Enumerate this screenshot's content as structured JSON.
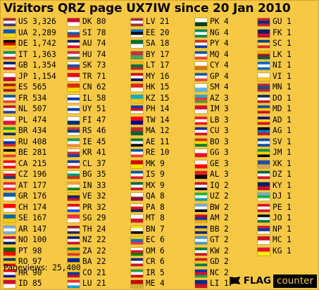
{
  "title": "Vizitors QRZ page UX7IW since 20 Jan 2010",
  "pageviews_label": "Pageviews:",
  "pageviews_value": "25,400",
  "brand": {
    "flag": "FLAG",
    "counter": "counter",
    "icon": "flag-counter-logo-icon"
  },
  "columns": [
    [
      {
        "code": "US",
        "count": "3,326",
        "colors": [
          "#b22234",
          "#ffffff",
          "#3c3b6e"
        ]
      },
      {
        "code": "UA",
        "count": "2,289",
        "colors": [
          "#0057b7",
          "#ffd700"
        ]
      },
      {
        "code": "DE",
        "count": "1,742",
        "colors": [
          "#000000",
          "#dd0000",
          "#ffce00"
        ]
      },
      {
        "code": "IT",
        "count": "1,363",
        "colors": [
          "#009246",
          "#ffffff",
          "#ce2b37"
        ]
      },
      {
        "code": "GB",
        "count": "1,354",
        "colors": [
          "#012169",
          "#ffffff",
          "#c8102e"
        ]
      },
      {
        "code": "JP",
        "count": "1,154",
        "colors": [
          "#ffffff",
          "#bc002d"
        ]
      },
      {
        "code": "ES",
        "count": "565",
        "colors": [
          "#aa151b",
          "#f1bf00",
          "#aa151b"
        ]
      },
      {
        "code": "FR",
        "count": "534",
        "colors": [
          "#0055a4",
          "#ffffff",
          "#ef4135"
        ]
      },
      {
        "code": "NL",
        "count": "507",
        "colors": [
          "#ae1c28",
          "#ffffff",
          "#21468b"
        ]
      },
      {
        "code": "PL",
        "count": "474",
        "colors": [
          "#ffffff",
          "#dc143c"
        ]
      },
      {
        "code": "BR",
        "count": "434",
        "colors": [
          "#009c3b",
          "#ffdf00",
          "#002776"
        ]
      },
      {
        "code": "RU",
        "count": "408",
        "colors": [
          "#ffffff",
          "#0039a6",
          "#d52b1e"
        ]
      },
      {
        "code": "BE",
        "count": "281",
        "colors": [
          "#000000",
          "#fdda24",
          "#ef3340"
        ]
      },
      {
        "code": "CA",
        "count": "215",
        "colors": [
          "#ff0000",
          "#ffffff",
          "#ff0000"
        ]
      },
      {
        "code": "CZ",
        "count": "196",
        "colors": [
          "#ffffff",
          "#d7141a",
          "#11457e"
        ]
      },
      {
        "code": "AT",
        "count": "177",
        "colors": [
          "#ed2939",
          "#ffffff",
          "#ed2939"
        ]
      },
      {
        "code": "GR",
        "count": "176",
        "colors": [
          "#0d5eaf",
          "#ffffff"
        ]
      },
      {
        "code": "CH",
        "count": "174",
        "colors": [
          "#ff0000",
          "#ffffff"
        ]
      },
      {
        "code": "SE",
        "count": "167",
        "colors": [
          "#006aa7",
          "#fecc00"
        ]
      },
      {
        "code": "AR",
        "count": "147",
        "colors": [
          "#74acdf",
          "#ffffff",
          "#74acdf"
        ]
      },
      {
        "code": "NO",
        "count": "100",
        "colors": [
          "#ba0c2f",
          "#ffffff",
          "#00205b"
        ]
      },
      {
        "code": "PT",
        "count": "98",
        "colors": [
          "#006600",
          "#ff0000"
        ]
      },
      {
        "code": "RO",
        "count": "97",
        "colors": [
          "#002b7f",
          "#fcd116",
          "#ce1126"
        ]
      },
      {
        "code": "HR",
        "count": "90",
        "colors": [
          "#ff0000",
          "#ffffff",
          "#171796"
        ]
      },
      {
        "code": "ID",
        "count": "85",
        "colors": [
          "#ce1126",
          "#ffffff"
        ]
      }
    ],
    [
      {
        "code": "DK",
        "count": "80",
        "colors": [
          "#c60c30",
          "#ffffff"
        ]
      },
      {
        "code": "SI",
        "count": "78",
        "colors": [
          "#ffffff",
          "#005da4",
          "#ed1c24"
        ]
      },
      {
        "code": "AU",
        "count": "74",
        "colors": [
          "#012169",
          "#ffffff",
          "#e4002b"
        ]
      },
      {
        "code": "HU",
        "count": "74",
        "colors": [
          "#ce2939",
          "#ffffff",
          "#477050"
        ]
      },
      {
        "code": "SK",
        "count": "73",
        "colors": [
          "#ffffff",
          "#0b4ea2",
          "#ee1c25"
        ]
      },
      {
        "code": "TR",
        "count": "71",
        "colors": [
          "#e30a17",
          "#ffffff"
        ]
      },
      {
        "code": "CN",
        "count": "62",
        "colors": [
          "#de2910",
          "#ffde00"
        ]
      },
      {
        "code": "IL",
        "count": "58",
        "colors": [
          "#ffffff",
          "#0038b8",
          "#ffffff"
        ]
      },
      {
        "code": "UY",
        "count": "51",
        "colors": [
          "#ffffff",
          "#0038a8",
          "#ffffff"
        ]
      },
      {
        "code": "FI",
        "count": "47",
        "colors": [
          "#ffffff",
          "#002f6c"
        ]
      },
      {
        "code": "RS",
        "count": "46",
        "colors": [
          "#c6363c",
          "#0c4076",
          "#ffffff"
        ]
      },
      {
        "code": "IE",
        "count": "45",
        "colors": [
          "#169b62",
          "#ffffff",
          "#ff883e"
        ]
      },
      {
        "code": "KR",
        "count": "41",
        "colors": [
          "#ffffff",
          "#cd2e3a",
          "#0047a0"
        ]
      },
      {
        "code": "CL",
        "count": "37",
        "colors": [
          "#0039a6",
          "#ffffff",
          "#d52b1e"
        ]
      },
      {
        "code": "BG",
        "count": "35",
        "colors": [
          "#ffffff",
          "#00966e",
          "#d62612"
        ]
      },
      {
        "code": "IN",
        "count": "33",
        "colors": [
          "#ff9933",
          "#ffffff",
          "#138808"
        ]
      },
      {
        "code": "VE",
        "count": "32",
        "colors": [
          "#ffcc00",
          "#00247d",
          "#cf142b"
        ]
      },
      {
        "code": "PR",
        "count": "32",
        "colors": [
          "#ed0000",
          "#ffffff",
          "#0050f0"
        ]
      },
      {
        "code": "SG",
        "count": "29",
        "colors": [
          "#ef3340",
          "#ffffff"
        ]
      },
      {
        "code": "TH",
        "count": "24",
        "colors": [
          "#a51931",
          "#f4f5f8",
          "#2d2a4a"
        ]
      },
      {
        "code": "NZ",
        "count": "22",
        "colors": [
          "#012169",
          "#ffffff",
          "#c8102e"
        ]
      },
      {
        "code": "ZA",
        "count": "22",
        "colors": [
          "#007a4d",
          "#ffb612",
          "#de3831"
        ]
      },
      {
        "code": "BA",
        "count": "22",
        "colors": [
          "#002395",
          "#fecb00"
        ]
      },
      {
        "code": "CO",
        "count": "21",
        "colors": [
          "#fcd116",
          "#003893",
          "#ce1126"
        ]
      },
      {
        "code": "LU",
        "count": "21",
        "colors": [
          "#ed2939",
          "#ffffff",
          "#00a1de"
        ]
      }
    ],
    [
      {
        "code": "LV",
        "count": "21",
        "colors": [
          "#9e3039",
          "#ffffff",
          "#9e3039"
        ]
      },
      {
        "code": "EE",
        "count": "20",
        "colors": [
          "#0072ce",
          "#000000",
          "#ffffff"
        ]
      },
      {
        "code": "SA",
        "count": "18",
        "colors": [
          "#006c35",
          "#ffffff"
        ]
      },
      {
        "code": "BY",
        "count": "17",
        "colors": [
          "#c8313e",
          "#4aa657"
        ]
      },
      {
        "code": "LT",
        "count": "17",
        "colors": [
          "#fdb913",
          "#006a44",
          "#c1272d"
        ]
      },
      {
        "code": "MY",
        "count": "16",
        "colors": [
          "#cc0001",
          "#ffffff",
          "#010066"
        ]
      },
      {
        "code": "HK",
        "count": "15",
        "colors": [
          "#de2910",
          "#ffffff"
        ]
      },
      {
        "code": "KZ",
        "count": "15",
        "colors": [
          "#00afca",
          "#fec50c"
        ]
      },
      {
        "code": "PH",
        "count": "14",
        "colors": [
          "#0038a8",
          "#ce1126",
          "#ffffff"
        ]
      },
      {
        "code": "TW",
        "count": "14",
        "colors": [
          "#fe0000",
          "#000095"
        ]
      },
      {
        "code": "MA",
        "count": "12",
        "colors": [
          "#c1272d",
          "#006233"
        ]
      },
      {
        "code": "AE",
        "count": "11",
        "colors": [
          "#00732f",
          "#ffffff",
          "#000000"
        ]
      },
      {
        "code": "RE",
        "count": "10",
        "colors": [
          "#0055a4",
          "#ffffff",
          "#ef4135"
        ]
      },
      {
        "code": "MK",
        "count": "9",
        "colors": [
          "#d20000",
          "#ffe600"
        ]
      },
      {
        "code": "IS",
        "count": "9",
        "colors": [
          "#02529c",
          "#ffffff",
          "#dc1e35"
        ]
      },
      {
        "code": "MX",
        "count": "9",
        "colors": [
          "#006847",
          "#ffffff",
          "#ce1126"
        ]
      },
      {
        "code": "QA",
        "count": "8",
        "colors": [
          "#ffffff",
          "#8a1538"
        ]
      },
      {
        "code": "PA",
        "count": "8",
        "colors": [
          "#ffffff",
          "#da121a",
          "#072357"
        ]
      },
      {
        "code": "MT",
        "count": "8",
        "colors": [
          "#ffffff",
          "#cf142b"
        ]
      },
      {
        "code": "BN",
        "count": "7",
        "colors": [
          "#f7e017",
          "#ffffff",
          "#000000"
        ]
      },
      {
        "code": "EC",
        "count": "6",
        "colors": [
          "#ffd100",
          "#0072ce",
          "#ef3340"
        ]
      },
      {
        "code": "OM",
        "count": "6",
        "colors": [
          "#ffffff",
          "#db161b",
          "#008000"
        ]
      },
      {
        "code": "CR",
        "count": "6",
        "colors": [
          "#002b7f",
          "#ffffff",
          "#ce1126"
        ]
      },
      {
        "code": "IR",
        "count": "5",
        "colors": [
          "#239f40",
          "#ffffff",
          "#da0000"
        ]
      },
      {
        "code": "ME",
        "count": "4",
        "colors": [
          "#c40308",
          "#d3ae3b"
        ]
      }
    ],
    [
      {
        "code": "PK",
        "count": "4",
        "colors": [
          "#ffffff",
          "#01411c"
        ]
      },
      {
        "code": "NG",
        "count": "4",
        "colors": [
          "#008751",
          "#ffffff",
          "#008751"
        ]
      },
      {
        "code": "PY",
        "count": "4",
        "colors": [
          "#d52b1e",
          "#ffffff",
          "#0038a8"
        ]
      },
      {
        "code": "MQ",
        "count": "4",
        "colors": [
          "#0055a4",
          "#ffffff",
          "#ef4135"
        ]
      },
      {
        "code": "CY",
        "count": "4",
        "colors": [
          "#ffffff",
          "#d57800"
        ]
      },
      {
        "code": "GP",
        "count": "4",
        "colors": [
          "#0055a4",
          "#ffffff",
          "#ef4135"
        ]
      },
      {
        "code": "SM",
        "count": "4",
        "colors": [
          "#ffffff",
          "#5eb6e4"
        ]
      },
      {
        "code": "AZ",
        "count": "3",
        "colors": [
          "#00b5e2",
          "#ef3340",
          "#509e2f"
        ]
      },
      {
        "code": "IM",
        "count": "3",
        "colors": [
          "#cf142b",
          "#ffffff"
        ]
      },
      {
        "code": "LB",
        "count": "3",
        "colors": [
          "#ed1c24",
          "#ffffff",
          "#ed1c24"
        ]
      },
      {
        "code": "CU",
        "count": "3",
        "colors": [
          "#002a8f",
          "#ffffff",
          "#cf142b"
        ]
      },
      {
        "code": "BO",
        "count": "3",
        "colors": [
          "#d52b1e",
          "#f9e300",
          "#007934"
        ]
      },
      {
        "code": "GG",
        "count": "3",
        "colors": [
          "#ffffff",
          "#e8112d"
        ]
      },
      {
        "code": "GE",
        "count": "3",
        "colors": [
          "#ffffff",
          "#ff0000"
        ]
      },
      {
        "code": "AL",
        "count": "3",
        "colors": [
          "#e41e20",
          "#000000"
        ]
      },
      {
        "code": "IQ",
        "count": "2",
        "colors": [
          "#ce1126",
          "#ffffff",
          "#000000"
        ]
      },
      {
        "code": "UZ",
        "count": "2",
        "colors": [
          "#1eb53a",
          "#ffffff",
          "#0099b5"
        ]
      },
      {
        "code": "BW",
        "count": "2",
        "colors": [
          "#75aadb",
          "#ffffff",
          "#000000"
        ]
      },
      {
        "code": "AM",
        "count": "2",
        "colors": [
          "#d90012",
          "#0033a0",
          "#f2a800"
        ]
      },
      {
        "code": "BB",
        "count": "2",
        "colors": [
          "#00267f",
          "#ffc726",
          "#00267f"
        ]
      },
      {
        "code": "GT",
        "count": "2",
        "colors": [
          "#4997d0",
          "#ffffff",
          "#4997d0"
        ]
      },
      {
        "code": "KW",
        "count": "2",
        "colors": [
          "#007a3d",
          "#ffffff",
          "#ce1126"
        ]
      },
      {
        "code": "GD",
        "count": "2",
        "colors": [
          "#ce1126",
          "#fcd116",
          "#007a5e"
        ]
      },
      {
        "code": "NC",
        "count": "2",
        "colors": [
          "#0035ad",
          "#e4002b",
          "#00a550"
        ]
      },
      {
        "code": "LI",
        "count": "1",
        "colors": [
          "#002b7f",
          "#ce1126"
        ]
      }
    ],
    [
      {
        "code": "GU",
        "count": "1",
        "colors": [
          "#c62139",
          "#00297b",
          "#c62139"
        ]
      },
      {
        "code": "FK",
        "count": "1",
        "colors": [
          "#012169",
          "#c8102e"
        ]
      },
      {
        "code": "SC",
        "count": "1",
        "colors": [
          "#003f87",
          "#fcd856",
          "#d62828"
        ]
      },
      {
        "code": "LK",
        "count": "1",
        "colors": [
          "#ffb700",
          "#8d2029",
          "#005f56"
        ]
      },
      {
        "code": "NI",
        "count": "1",
        "colors": [
          "#0067c6",
          "#ffffff",
          "#0067c6"
        ]
      },
      {
        "code": "VI",
        "count": "1",
        "colors": [
          "#ffffff",
          "#f4c42f"
        ]
      },
      {
        "code": "MN",
        "count": "1",
        "colors": [
          "#c4272f",
          "#015197",
          "#c4272f"
        ]
      },
      {
        "code": "DO",
        "count": "1",
        "colors": [
          "#002d62",
          "#ffffff",
          "#ce1126"
        ]
      },
      {
        "code": "MD",
        "count": "1",
        "colors": [
          "#0046ae",
          "#ffd200",
          "#cc092f"
        ]
      },
      {
        "code": "AD",
        "count": "1",
        "colors": [
          "#10069f",
          "#fedd00",
          "#d50032"
        ]
      },
      {
        "code": "AG",
        "count": "1",
        "colors": [
          "#000000",
          "#0072c6",
          "#ce1126"
        ]
      },
      {
        "code": "SV",
        "count": "1",
        "colors": [
          "#0047ab",
          "#ffffff",
          "#0047ab"
        ]
      },
      {
        "code": "JM",
        "count": "1",
        "colors": [
          "#009b3a",
          "#fed100",
          "#000000"
        ]
      },
      {
        "code": "XK",
        "count": "1",
        "colors": [
          "#244aa5",
          "#d0a650"
        ]
      },
      {
        "code": "DZ",
        "count": "1",
        "colors": [
          "#006233",
          "#ffffff",
          "#d21034"
        ]
      },
      {
        "code": "KY",
        "count": "1",
        "colors": [
          "#012169",
          "#c8102e"
        ]
      },
      {
        "code": "DJ",
        "count": "1",
        "colors": [
          "#6ab2e7",
          "#12ad2b",
          "#ffffff"
        ]
      },
      {
        "code": "PE",
        "count": "1",
        "colors": [
          "#d91023",
          "#ffffff",
          "#d91023"
        ]
      },
      {
        "code": "JO",
        "count": "1",
        "colors": [
          "#000000",
          "#ffffff",
          "#007a3d"
        ]
      },
      {
        "code": "NP",
        "count": "1",
        "colors": [
          "#dc143c",
          "#003893",
          "#ffffff"
        ]
      },
      {
        "code": "MC",
        "count": "1",
        "colors": [
          "#ce1126",
          "#ffffff"
        ]
      },
      {
        "code": "KG",
        "count": "1",
        "colors": [
          "#e8112d",
          "#ffef00"
        ]
      }
    ]
  ]
}
